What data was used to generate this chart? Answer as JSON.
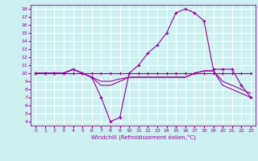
{
  "xlabel": "Windchill (Refroidissement éolien,°C)",
  "background_color": "#cef0f0",
  "grid_color": "#ffffff",
  "line_color": "#990099",
  "xlim": [
    -0.5,
    23.5
  ],
  "ylim": [
    3.5,
    18.5
  ],
  "yticks": [
    4,
    5,
    6,
    7,
    8,
    9,
    10,
    11,
    12,
    13,
    14,
    15,
    16,
    17,
    18
  ],
  "xticks": [
    0,
    1,
    2,
    3,
    4,
    5,
    6,
    7,
    8,
    9,
    10,
    11,
    12,
    13,
    14,
    15,
    16,
    17,
    18,
    19,
    20,
    21,
    22,
    23
  ],
  "curve1_x": [
    0,
    1,
    2,
    3,
    4,
    5,
    6,
    7,
    8,
    9,
    10,
    11,
    12,
    13,
    14,
    15,
    16,
    17,
    18,
    19,
    20,
    21,
    22,
    23
  ],
  "curve1_y": [
    10.0,
    10.0,
    10.0,
    10.0,
    10.0,
    10.0,
    10.0,
    10.0,
    10.0,
    10.0,
    10.0,
    10.0,
    10.0,
    10.0,
    10.0,
    10.0,
    10.0,
    10.0,
    10.0,
    10.0,
    10.0,
    10.0,
    10.0,
    10.0
  ],
  "curve2_x": [
    0,
    1,
    2,
    3,
    4,
    5,
    6,
    7,
    8,
    9,
    10,
    11,
    12,
    13,
    14,
    15,
    16,
    17,
    18,
    19,
    20,
    21,
    22,
    23
  ],
  "curve2_y": [
    10.0,
    10.0,
    10.0,
    10.0,
    10.5,
    10.0,
    9.5,
    9.0,
    9.0,
    9.3,
    9.5,
    9.5,
    9.5,
    9.5,
    9.5,
    9.5,
    9.5,
    10.0,
    10.3,
    10.3,
    9.0,
    8.5,
    8.0,
    7.5
  ],
  "curve3_x": [
    0,
    1,
    2,
    3,
    4,
    5,
    6,
    7,
    8,
    9,
    10,
    11,
    12,
    13,
    14,
    15,
    16,
    17,
    18,
    19,
    20,
    21,
    22,
    23
  ],
  "curve3_y": [
    10.0,
    10.0,
    10.0,
    10.0,
    10.5,
    10.0,
    9.5,
    8.5,
    8.5,
    9.0,
    9.5,
    9.5,
    9.5,
    9.5,
    9.5,
    9.5,
    9.5,
    10.0,
    10.3,
    10.3,
    8.5,
    8.0,
    7.5,
    7.0
  ],
  "curve4_x": [
    0,
    1,
    2,
    3,
    4,
    5,
    6,
    7,
    8,
    9,
    10,
    11,
    12,
    13,
    14,
    15,
    16,
    17,
    18,
    19,
    20,
    21,
    22,
    23
  ],
  "curve4_y": [
    10.0,
    10.0,
    10.0,
    10.0,
    10.5,
    10.0,
    9.5,
    7.0,
    4.0,
    4.5,
    10.0,
    11.0,
    12.5,
    13.5,
    15.0,
    17.5,
    18.0,
    17.5,
    16.5,
    10.5,
    10.5,
    10.5,
    8.5,
    7.0
  ]
}
